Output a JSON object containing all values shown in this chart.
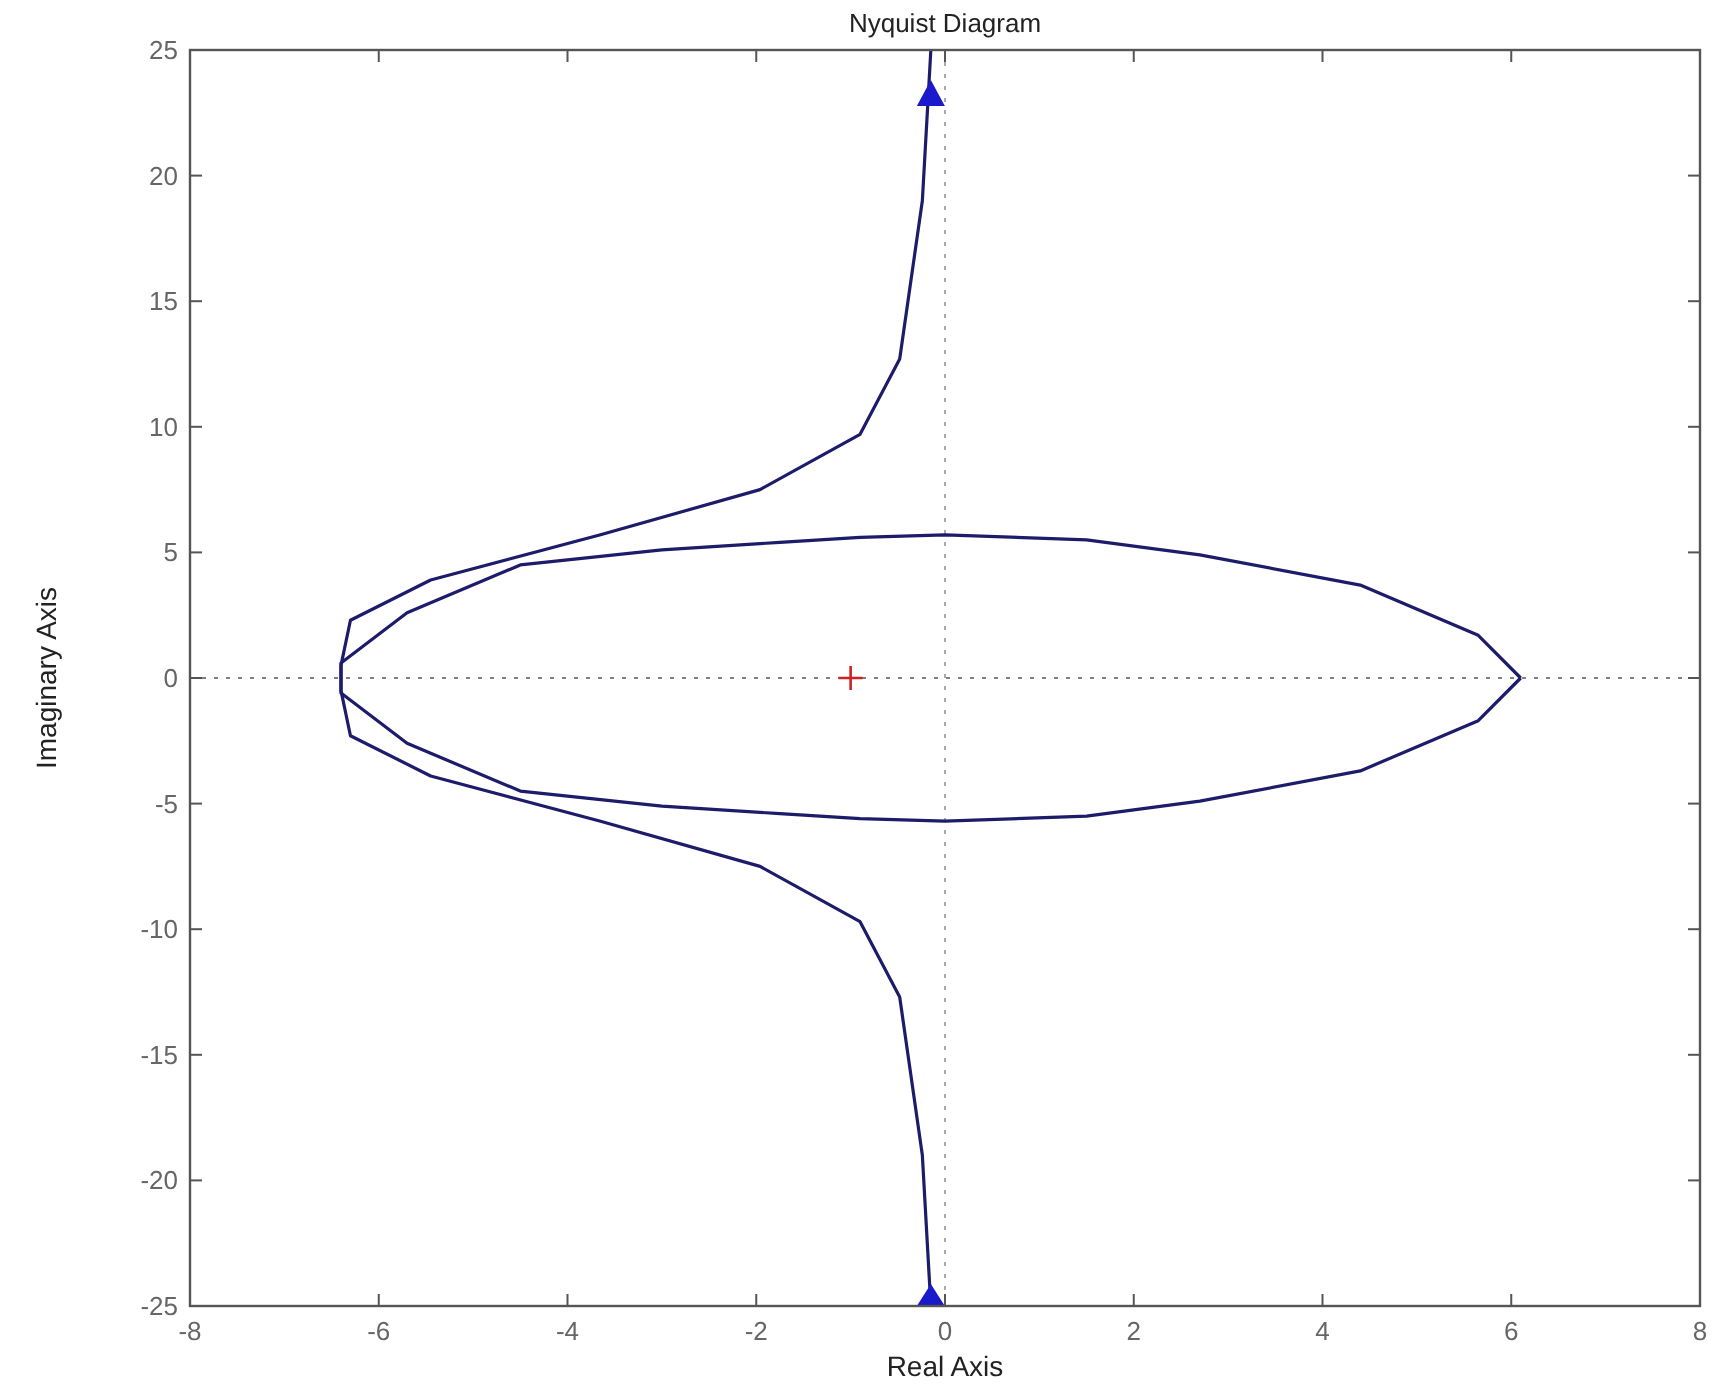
{
  "chart_data": {
    "type": "line",
    "title": "Nyquist Diagram",
    "xlabel": "Real Axis",
    "ylabel": "Imaginary Axis",
    "xlim": [
      -8,
      8
    ],
    "xticks": [
      -8,
      -6,
      -4,
      -2,
      0,
      2,
      4,
      6,
      8
    ],
    "ylim": [
      -25,
      25
    ],
    "yticks": [
      -25,
      -20,
      -15,
      -10,
      -5,
      0,
      5,
      10,
      15,
      20,
      25
    ],
    "grid": false,
    "series": [
      {
        "color": "#1c1c6b",
        "x": [
          -0.15,
          -0.24,
          -0.48,
          -0.9,
          -1.96,
          -3.65,
          -5.45,
          -6.3,
          -6.4,
          -6.4,
          -5.7,
          -4.5,
          -3,
          -1.75,
          -0.9,
          0,
          1.5,
          2.7,
          4.4,
          5.65,
          6.1
        ],
        "values": [
          25,
          19,
          12.7,
          9.7,
          7.5,
          5.7,
          3.9,
          2.3,
          0.5,
          -0.6,
          -2.6,
          -4.5,
          -5.1,
          -5.4,
          -5.6,
          -5.7,
          -5.5,
          -4.9,
          -3.7,
          -1.7,
          0
        ]
      },
      {
        "color": "#1c1c6b",
        "x": [
          -0.15,
          -0.24,
          -0.48,
          -0.9,
          -1.96,
          -3.65,
          -5.45,
          -6.3,
          -6.4,
          -6.4,
          -5.7,
          -4.5,
          -3,
          -1.75,
          -0.9,
          0,
          1.5,
          2.7,
          4.4,
          5.65,
          6.1
        ],
        "values": [
          -25,
          -19,
          -12.7,
          -9.7,
          -7.5,
          -5.7,
          -3.9,
          -2.3,
          -0.5,
          0.6,
          2.6,
          4.5,
          5.1,
          5.4,
          5.6,
          5.7,
          5.5,
          4.9,
          3.7,
          1.7,
          0
        ]
      },
      {
        "type": "scatter",
        "color": "#cc2222",
        "marker": "cross",
        "x": [
          -1
        ],
        "values": [
          0
        ]
      }
    ],
    "ref_lines": [
      {
        "axis": "x",
        "value": 0,
        "color": "#a8a8b8",
        "line_style": "dotted"
      },
      {
        "axis": "y",
        "value": 0,
        "color": "#808080",
        "line_style": "dotted"
      }
    ]
  }
}
